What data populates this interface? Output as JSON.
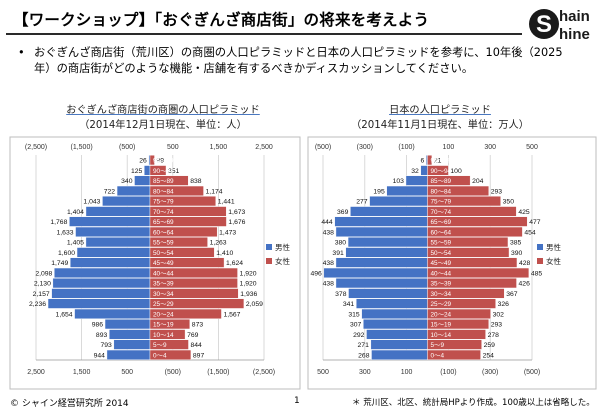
{
  "header": {
    "title": "【ワークショップ】「おぐぎんざ商店街」の将来を考えよう",
    "logo_line1": "hain",
    "logo_line2": "hine",
    "logo_letter": "S"
  },
  "bullet": {
    "dot": "•",
    "text": "おぐぎんざ商店街（荒川区）の商圏の人口ピラミッドと日本の人口ピラミッドを参考に、10年後（2025年）の商店街がどのような機能・店舗を有するべきかディスカッションしてください。"
  },
  "footer": {
    "copyright": "© シャイン経営研究所 2014",
    "page": "1",
    "note": "＊ 荒川区、北区、統計局HPより作成。100歳以上は省略した。"
  },
  "chart_data": [
    {
      "type": "bar",
      "orientation": "horizontal-population-pyramid",
      "title": "おぐぎんざ商店街の商圏の人口ピラミッド",
      "subtitle": "（2014年12月1日現在、単位：人）",
      "categories": [
        "0〜4",
        "5〜9",
        "10〜14",
        "15〜19",
        "20〜24",
        "25〜29",
        "30〜34",
        "35〜39",
        "40〜44",
        "45〜49",
        "50〜54",
        "55〜59",
        "60〜64",
        "65〜69",
        "70〜74",
        "75〜79",
        "80〜84",
        "85〜89",
        "90〜94",
        "95〜99"
      ],
      "series": [
        {
          "name": "男性",
          "values": [
            944,
            793,
            893,
            986,
            1654,
            2236,
            2157,
            2130,
            2098,
            1749,
            1600,
            1405,
            1633,
            1768,
            1404,
            1043,
            722,
            340,
            125,
            26
          ]
        },
        {
          "name": "女性",
          "values": [
            897,
            844,
            769,
            873,
            1567,
            2059,
            1936,
            1920,
            1920,
            1624,
            1410,
            1263,
            1473,
            1676,
            1673,
            1441,
            1174,
            838,
            351,
            99
          ]
        }
      ],
      "female_label_positions_note": "",
      "top_axis_labels": [
        "(2,500)",
        "(1,500)",
        "(500)",
        "500",
        "1,500",
        "2,500"
      ],
      "bottom_axis_labels": [
        "2,500",
        "1,500",
        "500",
        "(500)",
        "(1,500)",
        "(2,500)"
      ],
      "xlim": [
        -2500,
        2500
      ],
      "legend": [
        "男性",
        "女性"
      ],
      "colors": {
        "male": "#4472c4",
        "female": "#c0504d"
      }
    },
    {
      "type": "bar",
      "orientation": "horizontal-population-pyramid",
      "title": "日本の人口ピラミッド",
      "subtitle": "（2014年11月1日現在、単位：万人）",
      "categories": [
        "0〜4",
        "5〜9",
        "10〜14",
        "15〜19",
        "20〜24",
        "25〜29",
        "30〜34",
        "35〜39",
        "40〜44",
        "45〜49",
        "50〜54",
        "55〜59",
        "60〜64",
        "65〜69",
        "70〜74",
        "75〜79",
        "80〜84",
        "85〜89",
        "90〜94",
        "95〜99"
      ],
      "series": [
        {
          "name": "男性",
          "values": [
            268,
            271,
            292,
            307,
            315,
            341,
            378,
            438,
            496,
            438,
            391,
            380,
            438,
            444,
            369,
            277,
            195,
            103,
            32,
            6
          ]
        },
        {
          "name": "女性",
          "values": [
            254,
            259,
            278,
            293,
            302,
            326,
            367,
            426,
            485,
            428,
            390,
            385,
            454,
            477,
            425,
            350,
            293,
            204,
            100,
            21
          ]
        }
      ],
      "top_axis_labels": [
        "(500)",
        "(300)",
        "(100)",
        "100",
        "300",
        "500"
      ],
      "bottom_axis_labels": [
        "500",
        "300",
        "100",
        "(100)",
        "(300)",
        "(500)"
      ],
      "xlim": [
        -500,
        500
      ],
      "legend": [
        "男性",
        "女性"
      ],
      "colors": {
        "male": "#4472c4",
        "female": "#c0504d"
      }
    }
  ]
}
